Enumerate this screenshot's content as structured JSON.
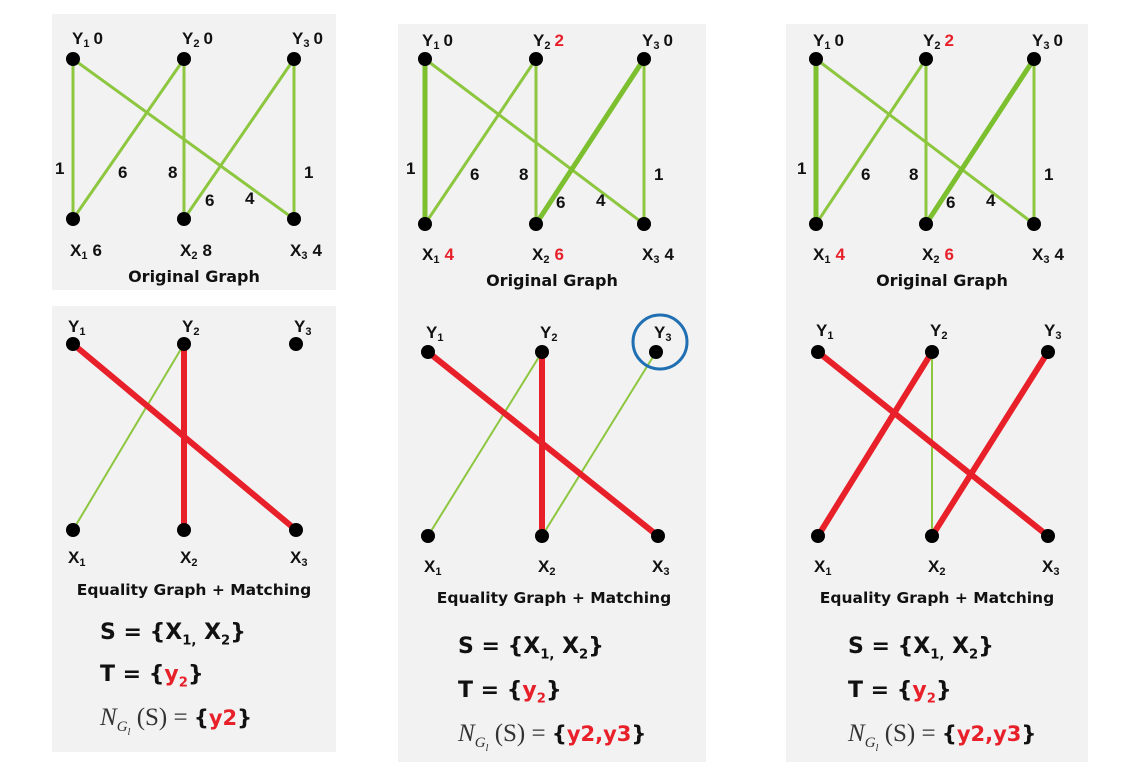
{
  "caption_original": "Original Graph",
  "caption_equality": "Equality Graph + Matching",
  "panels": [
    {
      "top": {
        "y_labels": [
          "Y",
          "Y",
          "Y"
        ],
        "y_labels_sub": [
          "1",
          "2",
          "3"
        ],
        "y_values": [
          "0",
          "0",
          "0"
        ],
        "y_values_changed": [
          false,
          false,
          false
        ],
        "x_labels": [
          "X",
          "X",
          "X"
        ],
        "x_labels_sub": [
          "1",
          "2",
          "3"
        ],
        "x_values": [
          "6",
          "8",
          "4"
        ],
        "x_values_changed": [
          false,
          false,
          false
        ],
        "weights": [
          "1",
          "6",
          "8",
          "6",
          "4",
          "1"
        ]
      },
      "bottom": {
        "y_labels": [
          "Y",
          "Y",
          "Y"
        ],
        "y_labels_sub": [
          "1",
          "2",
          "3"
        ],
        "x_labels": [
          "X",
          "X",
          "X"
        ],
        "x_labels_sub": [
          "1",
          "2",
          "3"
        ],
        "y3_circled": false
      },
      "S": {
        "prefix": "S = {X",
        "sub1": "1,",
        "mid": " X",
        "sub2": "2",
        "suffix": "}"
      },
      "T": {
        "prefix": "T = {",
        "value": "y",
        "sub": "2",
        "suffix": "}"
      },
      "N": {
        "label_N": "N",
        "label_G": "G",
        "label_l": "l",
        "label_S": "(S) =",
        "value": "{y2}",
        "brace_open": "{",
        "inner": "y2",
        "brace_close": "}"
      }
    },
    {
      "top": {
        "y_labels": [
          "Y",
          "Y",
          "Y"
        ],
        "y_labels_sub": [
          "1",
          "2",
          "3"
        ],
        "y_values": [
          "0",
          "2",
          "0"
        ],
        "y_values_changed": [
          false,
          true,
          false
        ],
        "x_labels": [
          "X",
          "X",
          "X"
        ],
        "x_labels_sub": [
          "1",
          "2",
          "3"
        ],
        "x_values": [
          "4",
          "6",
          "4"
        ],
        "x_values_changed": [
          true,
          true,
          false
        ],
        "weights": [
          "1",
          "6",
          "8",
          "6",
          "4",
          "1"
        ]
      },
      "bottom": {
        "y_labels": [
          "Y",
          "Y",
          "Y"
        ],
        "y_labels_sub": [
          "1",
          "2",
          "3"
        ],
        "x_labels": [
          "X",
          "X",
          "X"
        ],
        "x_labels_sub": [
          "1",
          "2",
          "3"
        ],
        "y3_circled": true
      },
      "S": {
        "prefix": "S = {X",
        "sub1": "1,",
        "mid": " X",
        "sub2": "2",
        "suffix": "}"
      },
      "T": {
        "prefix": "T = {",
        "value": "y",
        "sub": "2",
        "suffix": "}"
      },
      "N": {
        "label_N": "N",
        "label_G": "G",
        "label_l": "l",
        "label_S": "(S) =",
        "brace_open": "{",
        "inner": "y2,y3",
        "brace_close": "}"
      }
    },
    {
      "top": {
        "y_labels": [
          "Y",
          "Y",
          "Y"
        ],
        "y_labels_sub": [
          "1",
          "2",
          "3"
        ],
        "y_values": [
          "0",
          "2",
          "0"
        ],
        "y_values_changed": [
          false,
          true,
          false
        ],
        "x_labels": [
          "X",
          "X",
          "X"
        ],
        "x_labels_sub": [
          "1",
          "2",
          "3"
        ],
        "x_values": [
          "4",
          "6",
          "4"
        ],
        "x_values_changed": [
          true,
          true,
          false
        ],
        "weights": [
          "1",
          "6",
          "8",
          "6",
          "4",
          "1"
        ]
      },
      "bottom": {
        "y_labels": [
          "Y",
          "Y",
          "Y"
        ],
        "y_labels_sub": [
          "1",
          "2",
          "3"
        ],
        "x_labels": [
          "X",
          "X",
          "X"
        ],
        "x_labels_sub": [
          "1",
          "2",
          "3"
        ],
        "y3_circled": false
      },
      "S": {
        "prefix": "S = {X",
        "sub1": "1,",
        "mid": " X",
        "sub2": "2",
        "suffix": "}"
      },
      "T": {
        "prefix": "T = {",
        "value": "y",
        "sub": "2",
        "suffix": "}"
      },
      "N": {
        "label_N": "N",
        "label_G": "G",
        "label_l": "l",
        "label_S": "(S) =",
        "brace_open": "{",
        "inner": "y2,y3",
        "brace_close": "}"
      }
    }
  ],
  "colors": {
    "accent_red": "#e8202a",
    "edge_green": "#8dc63f",
    "circle_blue": "#1f6fb2",
    "panel_bg": "#f2f2f2"
  }
}
